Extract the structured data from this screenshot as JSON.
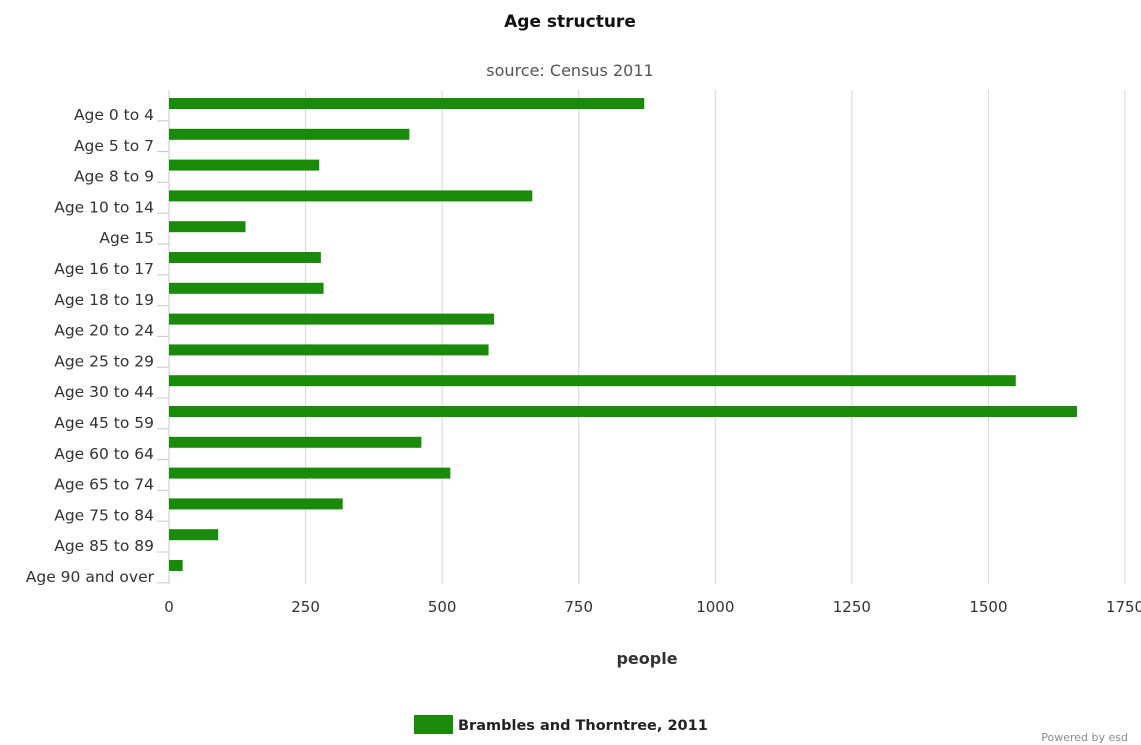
{
  "chart_data": {
    "type": "bar",
    "orientation": "horizontal",
    "title": "Age structure",
    "subtitle": "source: Census 2011",
    "xlabel": "people",
    "ylabel": "",
    "categories": [
      "Age 0 to 4",
      "Age 5 to 7",
      "Age 8 to 9",
      "Age 10 to 14",
      "Age 15",
      "Age 16 to 17",
      "Age 18 to 19",
      "Age 20 to 24",
      "Age 25 to 29",
      "Age 30 to 44",
      "Age 45 to 59",
      "Age 60 to 64",
      "Age 65 to 74",
      "Age 75 to 84",
      "Age 85 to 89",
      "Age 90 and over"
    ],
    "series": [
      {
        "name": "Brambles and Thorntree, 2011",
        "color": "#1a8a0b",
        "values": [
          870,
          440,
          275,
          665,
          140,
          278,
          283,
          595,
          585,
          1550,
          1662,
          462,
          515,
          318,
          90,
          25
        ]
      }
    ],
    "xlim": [
      0,
      1750
    ],
    "xticks": [
      "0",
      "250",
      "500",
      "750",
      "1000",
      "1250",
      "1500",
      "1750"
    ],
    "grid": true,
    "legend_position": "bottom-center"
  },
  "credit": "Powered by esd"
}
